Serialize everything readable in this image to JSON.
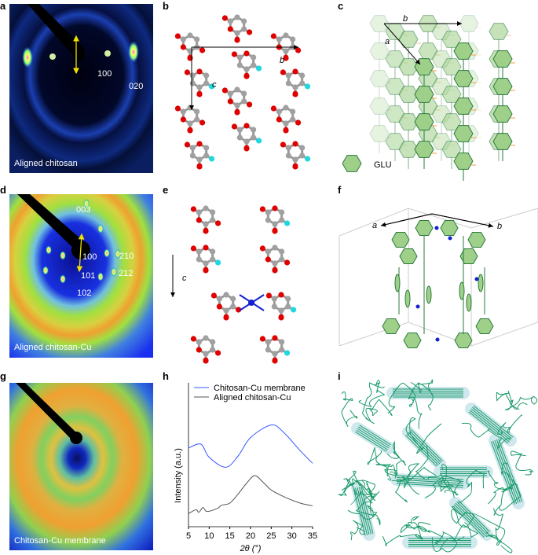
{
  "panels": {
    "a": {
      "label": "a",
      "caption": "Aligned chitosan",
      "reflections": [
        "100",
        "020"
      ]
    },
    "b": {
      "label": "b",
      "axes": [
        "b",
        "c"
      ]
    },
    "c": {
      "label": "c",
      "axes": [
        "b",
        "a"
      ],
      "legend": "GLU"
    },
    "d": {
      "label": "d",
      "caption": "Aligned chitosan-Cu",
      "reflections": [
        "003",
        "100",
        "101",
        "102",
        "210",
        "212"
      ]
    },
    "e": {
      "label": "e",
      "axes": [
        "c"
      ]
    },
    "f": {
      "label": "f",
      "axes": [
        "a",
        "b"
      ]
    },
    "g": {
      "label": "g",
      "caption": "Chitosan-Cu membrane"
    },
    "h": {
      "label": "h"
    },
    "i": {
      "label": "i"
    }
  },
  "colors": {
    "carbon": "#a0a0a0",
    "oxygen": "#e00000",
    "nitrogen": "#20d8e0",
    "copper": "#1020d0",
    "glu_fill": "#9fd08a",
    "glu_stroke": "#2a7a3a",
    "blue_series": "#3355ff",
    "gray_series": "#555555"
  },
  "chart_data": {
    "type": "line",
    "xlabel": "2θ (°)",
    "ylabel": "Intensity (a.u.)",
    "xlim": [
      5,
      35
    ],
    "ylim": [
      0,
      4.5
    ],
    "xticks": [
      5,
      10,
      15,
      20,
      25,
      30,
      35
    ],
    "legend_position": "top",
    "series": [
      {
        "name": "Chitosan-Cu membrane",
        "color": "#3355ff",
        "x": [
          5,
          8,
          10,
          14,
          17,
          20,
          25,
          28,
          32,
          35
        ],
        "y": [
          3.0,
          3.15,
          2.65,
          2.27,
          2.7,
          3.4,
          3.88,
          3.6,
          2.9,
          2.42
        ]
      },
      {
        "name": "Aligned chitosan-Cu",
        "color": "#555555",
        "x": [
          5,
          6.8,
          7.5,
          8.5,
          9.5,
          12,
          13,
          15,
          17,
          19,
          21,
          23,
          25,
          28,
          32,
          35
        ],
        "y": [
          0.5,
          0.65,
          0.55,
          0.73,
          0.58,
          0.7,
          0.82,
          0.9,
          1.25,
          1.65,
          1.95,
          1.7,
          1.4,
          1.15,
          0.9,
          0.8
        ]
      }
    ]
  }
}
